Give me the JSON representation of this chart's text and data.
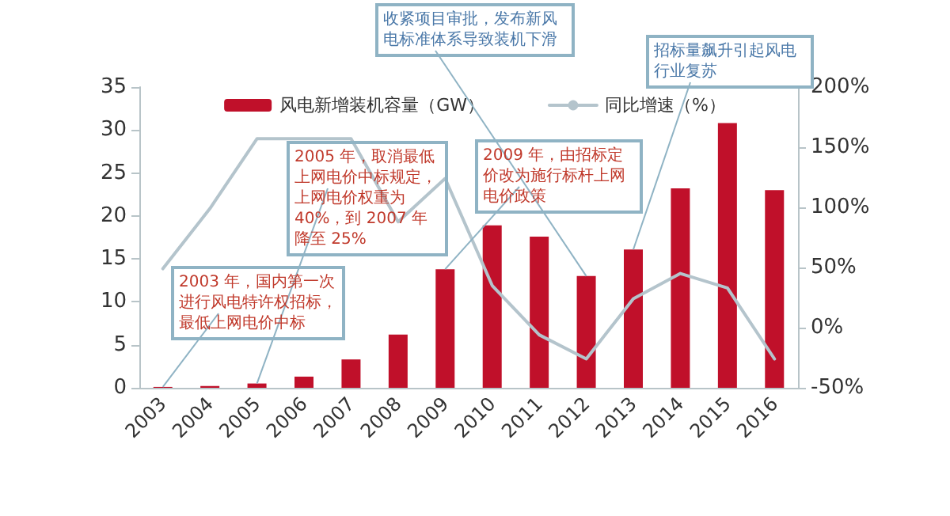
{
  "chart_data": {
    "type": "bar",
    "categories": [
      "2003",
      "2004",
      "2005",
      "2006",
      "2007",
      "2008",
      "2009",
      "2010",
      "2011",
      "2012",
      "2013",
      "2014",
      "2015",
      "2016"
    ],
    "series": [
      {
        "name": "风电新增装机容量（GW）",
        "color": "#c0102a",
        "values": [
          0.1,
          0.2,
          0.5,
          1.3,
          3.3,
          6.2,
          13.8,
          18.9,
          17.6,
          13,
          16.1,
          23.2,
          30.8,
          23
        ]
      },
      {
        "name": "同比增速（%）",
        "type": "line",
        "axis": "y2",
        "color": "#b4c4cc",
        "values": [
          49,
          99,
          157,
          157,
          157,
          88,
          124,
          35,
          -6,
          -26,
          24,
          45,
          33,
          -26
        ]
      }
    ],
    "ylim": [
      0,
      35
    ],
    "yticks": [
      0,
      5,
      10,
      15,
      20,
      25,
      30,
      35
    ],
    "y2lim": [
      -50,
      200
    ],
    "y2ticks": [
      {
        "value": -50,
        "label": "-50%"
      },
      {
        "value": 0,
        "label": "0%"
      },
      {
        "value": 50,
        "label": "50%"
      },
      {
        "value": 100,
        "label": "100%"
      },
      {
        "value": 150,
        "label": "150%"
      },
      {
        "value": 200,
        "label": "200%"
      }
    ],
    "annotations": [
      {
        "text": "收紧项目审批，发布新风电标准体系导致装机下滑",
        "x": "2012",
        "y": 13
      },
      {
        "text": "2005 年，取消最低上网电价中标规定，上网电价权重为 40%，到 2007 年降至 25%",
        "x": "2005",
        "y": 0.5
      },
      {
        "text": "2009 年，由招标定价改为施行标杆上网电价政策",
        "x": "2009",
        "y": 13.8
      },
      {
        "text": "2003 年，国内第一次进行风电特许权招标，最低上网电价中标",
        "x": "2003",
        "y": 0.1
      },
      {
        "text": "招标量飙升引起风电行业复苏",
        "x": "2013",
        "y": 16.1
      }
    ],
    "legend": "top",
    "grid": false,
    "marker": "none",
    "line_style": "solid"
  }
}
